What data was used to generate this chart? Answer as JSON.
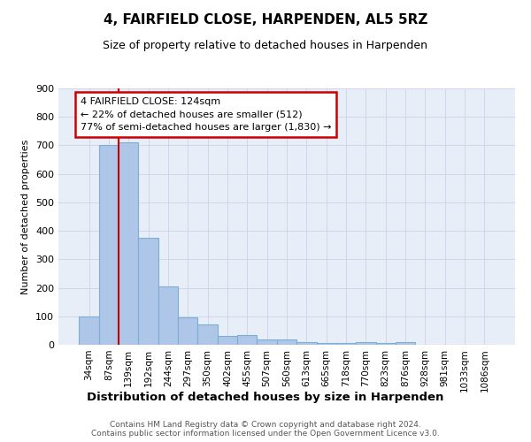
{
  "title": "4, FAIRFIELD CLOSE, HARPENDEN, AL5 5RZ",
  "subtitle": "Size of property relative to detached houses in Harpenden",
  "xlabel": "Distribution of detached houses by size in Harpenden",
  "ylabel": "Number of detached properties",
  "footer_line1": "Contains HM Land Registry data © Crown copyright and database right 2024.",
  "footer_line2": "Contains public sector information licensed under the Open Government Licence v3.0.",
  "bins": [
    "34sqm",
    "87sqm",
    "139sqm",
    "192sqm",
    "244sqm",
    "297sqm",
    "350sqm",
    "402sqm",
    "455sqm",
    "507sqm",
    "560sqm",
    "613sqm",
    "665sqm",
    "718sqm",
    "770sqm",
    "823sqm",
    "876sqm",
    "928sqm",
    "981sqm",
    "1033sqm",
    "1086sqm"
  ],
  "values": [
    100,
    700,
    710,
    375,
    205,
    97,
    70,
    30,
    33,
    20,
    20,
    10,
    7,
    5,
    8,
    5,
    8,
    0,
    0,
    0,
    0
  ],
  "property_bin_index": 2,
  "annotation_line1": "4 FAIRFIELD CLOSE: 124sqm",
  "annotation_line2": "← 22% of detached houses are smaller (512)",
  "annotation_line3": "77% of semi-detached houses are larger (1,830) →",
  "bar_color": "#aec6e8",
  "bar_edge_color": "#7bafd4",
  "line_color": "#cc0000",
  "annotation_box_color": "#cc0000",
  "ylim": [
    0,
    900
  ],
  "yticks": [
    0,
    100,
    200,
    300,
    400,
    500,
    600,
    700,
    800,
    900
  ],
  "bg_color": "#e8eef8",
  "grid_color": "#c8d4e8"
}
